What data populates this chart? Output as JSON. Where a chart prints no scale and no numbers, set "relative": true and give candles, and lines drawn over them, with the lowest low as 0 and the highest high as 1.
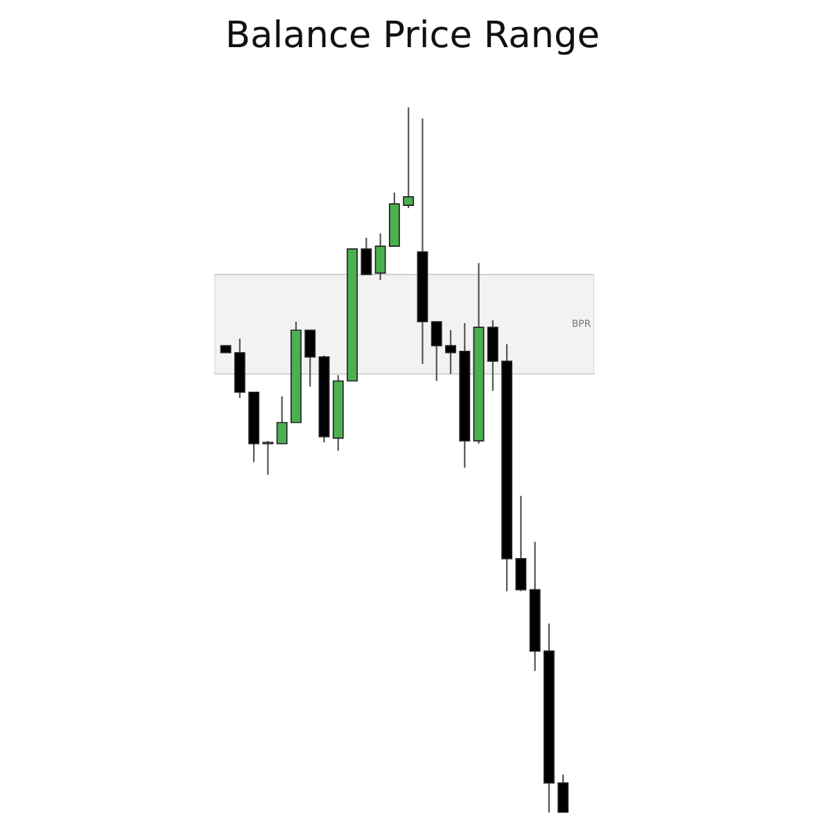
{
  "chart_data": {
    "type": "candlestick",
    "title": "Balance Price Range",
    "relative": true,
    "categories": [
      null,
      null,
      null,
      null,
      null,
      null,
      null,
      null,
      null,
      null,
      null,
      null,
      null,
      null,
      null,
      null,
      null,
      null,
      null,
      null,
      null,
      null,
      null,
      null,
      null
    ],
    "ohlc": [
      [
        0.662,
        0.662,
        0.652,
        0.652
      ],
      [
        0.652,
        0.672,
        0.588,
        0.596
      ],
      [
        0.596,
        0.596,
        0.497,
        0.523
      ],
      [
        0.523,
        0.527,
        0.479,
        0.525
      ],
      [
        0.523,
        0.59,
        0.523,
        0.553
      ],
      [
        0.553,
        0.696,
        0.553,
        0.684
      ],
      [
        0.684,
        0.684,
        0.604,
        0.646
      ],
      [
        0.646,
        0.648,
        0.525,
        0.533
      ],
      [
        0.531,
        0.62,
        0.513,
        0.612
      ],
      [
        0.612,
        0.799,
        0.612,
        0.799
      ],
      [
        0.799,
        0.815,
        0.763,
        0.763
      ],
      [
        0.765,
        0.821,
        0.755,
        0.803
      ],
      [
        0.803,
        0.879,
        0.803,
        0.863
      ],
      [
        0.861,
        1,
        0.857,
        0.873
      ],
      [
        0.795,
        0.984,
        0.636,
        0.696
      ],
      [
        0.696,
        0.696,
        0.612,
        0.662
      ],
      [
        0.662,
        0.684,
        0.622,
        0.652
      ],
      [
        0.654,
        0.694,
        0.489,
        0.527
      ],
      [
        0.527,
        0.779,
        0.523,
        0.688
      ],
      [
        0.688,
        0.698,
        0.598,
        0.64
      ],
      [
        0.64,
        0.664,
        0.314,
        0.36
      ],
      [
        0.36,
        0.449,
        0.314,
        0.316
      ],
      [
        0.316,
        0.384,
        0.201,
        0.229
      ],
      [
        0.229,
        0.268,
        0,
        0.042
      ],
      [
        0.042,
        0.054,
        0,
        0
      ]
    ],
    "colors": [
      "#000000",
      "#000000",
      "#000000",
      "#4caf50",
      "#4caf50",
      "#4caf50",
      "#000000",
      "#000000",
      "#4caf50",
      "#4caf50",
      "#000000",
      "#4caf50",
      "#4caf50",
      "#4caf50",
      "#000000",
      "#000000",
      "#000000",
      "#000000",
      "#4caf50",
      "#000000",
      "#000000",
      "#000000",
      "#000000",
      "#000000",
      "#000000"
    ],
    "bands": [
      {
        "axis": "y",
        "from": 0.622,
        "to": 0.763,
        "label": "BPR",
        "color": "#f2f2f2"
      }
    ],
    "grid": false,
    "legend": false
  }
}
